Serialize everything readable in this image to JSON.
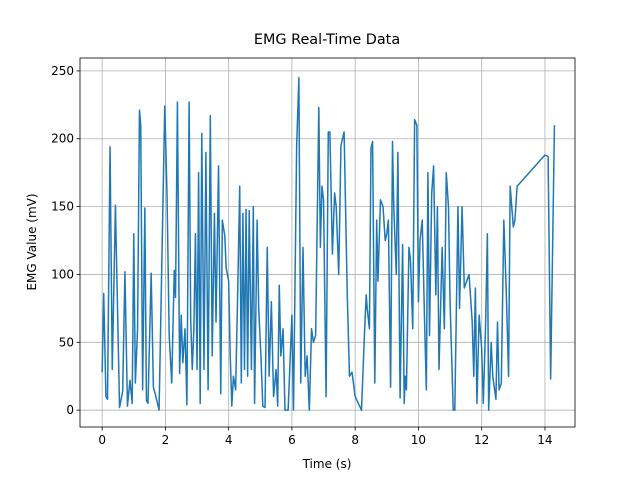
{
  "chart_data": {
    "type": "line",
    "title": "EMG Real-Time Data",
    "x_label": "Time (s)",
    "y_label": "EMG Value (mV)",
    "x": [
      0.0,
      0.05,
      0.12,
      0.17,
      0.25,
      0.32,
      0.42,
      0.55,
      0.65,
      0.72,
      0.8,
      0.88,
      0.95,
      1.0,
      1.05,
      1.12,
      1.18,
      1.22,
      1.28,
      1.35,
      1.4,
      1.45,
      1.55,
      1.62,
      1.7,
      1.8,
      1.98,
      2.05,
      2.12,
      2.2,
      2.28,
      2.32,
      2.38,
      2.45,
      2.5,
      2.55,
      2.62,
      2.68,
      2.75,
      2.8,
      2.85,
      2.9,
      2.95,
      3.0,
      3.05,
      3.1,
      3.15,
      3.22,
      3.28,
      3.35,
      3.42,
      3.48,
      3.55,
      3.6,
      3.68,
      3.75,
      3.8,
      3.88,
      3.92,
      4.0,
      4.05,
      4.1,
      4.15,
      4.22,
      4.28,
      4.35,
      4.4,
      4.45,
      4.5,
      4.55,
      4.6,
      4.65,
      4.72,
      4.78,
      4.82,
      4.9,
      4.95,
      5.02,
      5.08,
      5.15,
      5.22,
      5.28,
      5.35,
      5.42,
      5.5,
      5.55,
      5.6,
      5.65,
      5.72,
      5.78,
      5.88,
      6.0,
      6.05,
      6.15,
      6.22,
      6.28,
      6.35,
      6.42,
      6.48,
      6.55,
      6.62,
      6.68,
      6.75,
      6.85,
      6.9,
      6.95,
      7.0,
      7.08,
      7.15,
      7.2,
      7.28,
      7.35,
      7.4,
      7.48,
      7.55,
      7.65,
      7.75,
      7.82,
      7.9,
      8.0,
      8.2,
      8.3,
      8.35,
      8.38,
      8.45,
      8.5,
      8.55,
      8.62,
      8.68,
      8.72,
      8.8,
      8.88,
      8.95,
      9.0,
      9.05,
      9.12,
      9.18,
      9.22,
      9.3,
      9.35,
      9.42,
      9.5,
      9.55,
      9.58,
      9.62,
      9.7,
      9.75,
      9.82,
      9.88,
      9.95,
      10.0,
      10.05,
      10.12,
      10.2,
      10.25,
      10.3,
      10.35,
      10.42,
      10.48,
      10.55,
      10.6,
      10.65,
      10.75,
      10.82,
      10.88,
      10.95,
      11.0,
      11.1,
      11.15,
      11.25,
      11.3,
      11.38,
      11.45,
      11.6,
      11.7,
      11.75,
      11.8,
      11.85,
      11.92,
      12.0,
      12.05,
      12.12,
      12.18,
      12.22,
      12.3,
      12.35,
      12.45,
      12.5,
      12.55,
      12.62,
      12.7,
      12.78,
      12.85,
      12.9,
      13.0,
      13.05,
      13.12,
      14.0,
      14.1,
      14.18,
      14.3
    ],
    "series": [
      {
        "name": "EMG",
        "color": "#1f77b4",
        "values": [
          28,
          86,
          10,
          8,
          194,
          30,
          151,
          2,
          14,
          102,
          3,
          22,
          5,
          130,
          20,
          60,
          221,
          210,
          15,
          149,
          7,
          5,
          101,
          17,
          10,
          0,
          224,
          160,
          55,
          20,
          103,
          83,
          227,
          27,
          70,
          35,
          60,
          4,
          227,
          67,
          30,
          60,
          130,
          30,
          175,
          5,
          204,
          30,
          190,
          15,
          217,
          40,
          145,
          65,
          180,
          12,
          140,
          128,
          105,
          95,
          40,
          3,
          25,
          15,
          80,
          165,
          20,
          145,
          30,
          148,
          25,
          147,
          30,
          150,
          5,
          140,
          75,
          40,
          3,
          2,
          120,
          25,
          80,
          10,
          30,
          3,
          92,
          40,
          60,
          0,
          0,
          70,
          0,
          195,
          245,
          20,
          120,
          25,
          40,
          0,
          60,
          50,
          55,
          223,
          120,
          165,
          155,
          10,
          205,
          205,
          115,
          160,
          150,
          100,
          195,
          205,
          85,
          25,
          28,
          10,
          0,
          60,
          85,
          75,
          60,
          193,
          198,
          20,
          140,
          95,
          155,
          150,
          125,
          130,
          140,
          17,
          198,
          150,
          100,
          190,
          9,
          122,
          5,
          25,
          15,
          120,
          110,
          60,
          214,
          210,
          80,
          125,
          140,
          60,
          15,
          175,
          55,
          160,
          180,
          85,
          150,
          30,
          120,
          60,
          175,
          150,
          80,
          0,
          0,
          150,
          75,
          150,
          90,
          100,
          65,
          25,
          90,
          5,
          70,
          45,
          5,
          60,
          130,
          0,
          50,
          25,
          8,
          65,
          15,
          20,
          140,
          85,
          25,
          165,
          135,
          140,
          165,
          188,
          187,
          23,
          210
        ]
      }
    ],
    "xlim": [
      -0.7,
      14.95
    ],
    "ylim": [
      -12.4,
      259.5
    ],
    "xticks": [
      0,
      2,
      4,
      6,
      8,
      10,
      12,
      14
    ],
    "yticks": [
      0,
      50,
      100,
      150,
      200,
      250
    ],
    "grid": true
  }
}
